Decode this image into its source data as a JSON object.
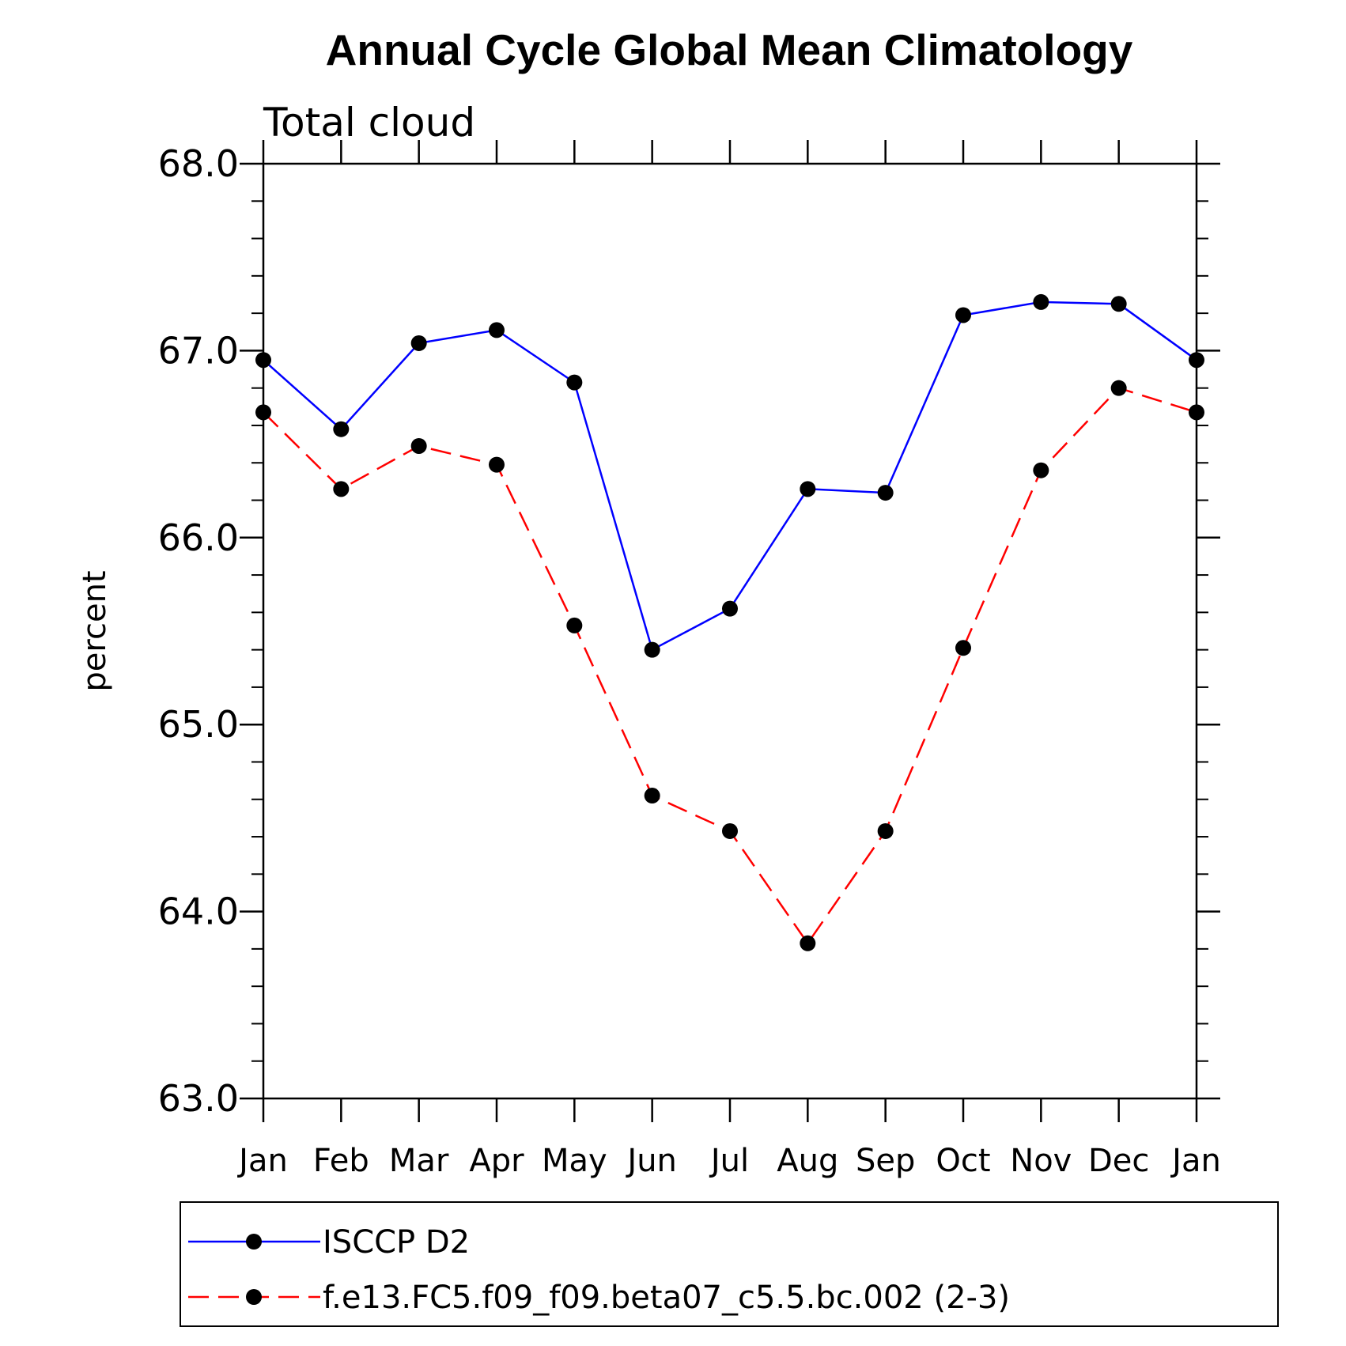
{
  "chart_data": {
    "type": "line",
    "title": "Annual Cycle Global Mean Climatology",
    "subtitle": "Total cloud",
    "ylabel": "percent",
    "xlabel": "",
    "categories": [
      "Jan",
      "Feb",
      "Mar",
      "Apr",
      "May",
      "Jun",
      "Jul",
      "Aug",
      "Sep",
      "Oct",
      "Nov",
      "Dec",
      "Jan"
    ],
    "ylim": [
      63.0,
      68.0
    ],
    "yticks": [
      "63.0",
      "64.0",
      "65.0",
      "66.0",
      "67.0",
      "68.0"
    ],
    "grid": false,
    "legend_placement": "bottom",
    "series": [
      {
        "name": "ISCCP D2",
        "color": "#0000ff",
        "dash": "solid",
        "marker": "circle",
        "values": [
          66.95,
          66.58,
          67.04,
          67.11,
          66.83,
          65.4,
          65.62,
          66.26,
          66.24,
          67.19,
          67.26,
          67.25,
          66.95
        ]
      },
      {
        "name": "f.e13.FC5.f09_f09.beta07_c5.5.bc.002 (2-3)",
        "color": "#ff0000",
        "dash": "dashed",
        "marker": "circle",
        "values": [
          66.67,
          66.26,
          66.49,
          66.39,
          65.53,
          64.62,
          64.43,
          63.83,
          64.43,
          65.41,
          66.36,
          66.8,
          66.67
        ]
      }
    ]
  }
}
